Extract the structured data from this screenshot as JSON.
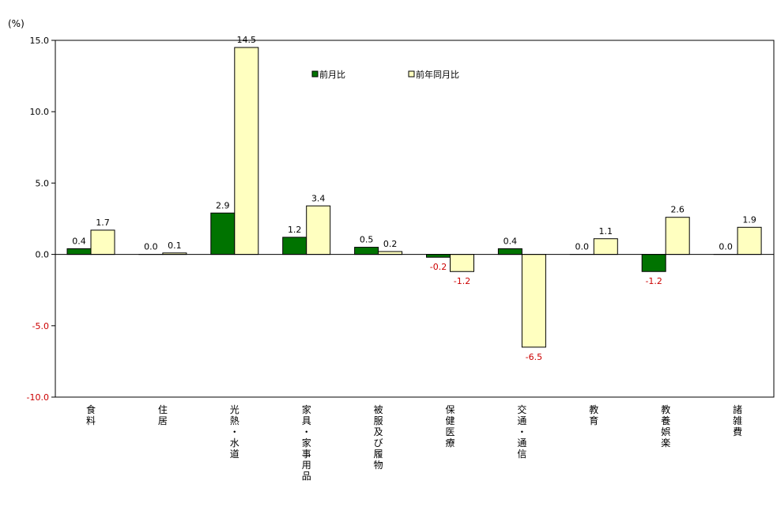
{
  "chart_data": {
    "type": "bar",
    "unit_label": "(%)",
    "categories": [
      {
        "id": "food",
        "label": "食料",
        "chars": [
          "食",
          "料"
        ]
      },
      {
        "id": "housing",
        "label": "住居",
        "chars": [
          "住",
          "居"
        ]
      },
      {
        "id": "fuel",
        "label": "光熱・水道",
        "chars": [
          "光",
          "熱",
          "・",
          "水",
          "道"
        ]
      },
      {
        "id": "furniture",
        "label": "家具・家事用品",
        "chars": [
          "家",
          "具",
          "・",
          "家",
          "事",
          "用",
          "品"
        ]
      },
      {
        "id": "clothing",
        "label": "被服及び履物",
        "chars": [
          "被",
          "服",
          "及",
          "び",
          "履",
          "物"
        ]
      },
      {
        "id": "medical",
        "label": "保健医療",
        "chars": [
          "保",
          "健",
          "医",
          "療"
        ]
      },
      {
        "id": "transport",
        "label": "交通・通信",
        "chars": [
          "交",
          "通",
          "・",
          "通",
          "信"
        ]
      },
      {
        "id": "education",
        "label": "教育",
        "chars": [
          "教",
          "育"
        ]
      },
      {
        "id": "recreation",
        "label": "教養娯楽",
        "chars": [
          "教",
          "養",
          "娯",
          "楽"
        ]
      },
      {
        "id": "misc",
        "label": "諸雑費",
        "chars": [
          "諸",
          "雑",
          "費"
        ]
      }
    ],
    "series": [
      {
        "name": "前月比",
        "color": "#007300",
        "values": [
          0.4,
          0.0,
          2.9,
          1.2,
          0.5,
          -0.2,
          0.4,
          0.0,
          -1.2,
          0.0
        ],
        "labels": [
          "0.4",
          "0.0",
          "2.9",
          "1.2",
          "0.5",
          "-0.2",
          "0.4",
          "0.0",
          "-1.2",
          "0.0"
        ]
      },
      {
        "name": "前年同月比",
        "color": "#ffffc0",
        "values": [
          1.7,
          0.1,
          14.5,
          3.4,
          0.2,
          -1.2,
          -6.5,
          1.1,
          2.6,
          1.9
        ],
        "labels": [
          "1.7",
          "0.1",
          "14.5",
          "3.4",
          "0.2",
          "-1.2",
          "-6.5",
          "1.1",
          "2.6",
          "1.9"
        ]
      }
    ],
    "ylim": [
      -10,
      15
    ],
    "yticks": [
      {
        "value": 15,
        "label": "15.0"
      },
      {
        "value": 10,
        "label": "10.0"
      },
      {
        "value": 5,
        "label": "5.0"
      },
      {
        "value": 0,
        "label": "0.0"
      },
      {
        "value": -5,
        "label": "-5.0"
      },
      {
        "value": -10,
        "label": "-10.0"
      }
    ],
    "grid": false,
    "legend_position": "top-center",
    "negative_label_color": "#cc0000"
  }
}
